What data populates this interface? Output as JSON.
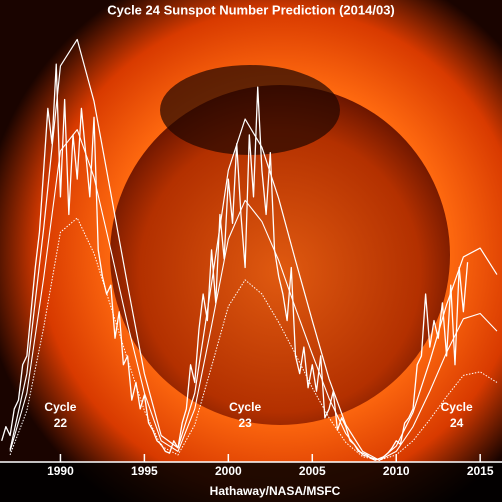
{
  "chart_data": {
    "type": "line",
    "title": "Cycle 24 Sunspot Number Prediction (2014/03)",
    "xlabel": "Hathaway/NASA/MSFC",
    "xlim": [
      1986.4,
      2016.3
    ],
    "xticks": [
      1990,
      1995,
      2000,
      2005,
      2010,
      2015
    ],
    "ylim": [
      0,
      250
    ],
    "annotations": [
      {
        "lines": [
          "Cycle",
          "22"
        ],
        "x": 1990
      },
      {
        "lines": [
          "Cycle",
          "23"
        ],
        "x": 2001
      },
      {
        "lines": [
          "Cycle",
          "24"
        ],
        "x": 2013.6
      }
    ],
    "series": [
      {
        "color": "#ffffff",
        "width": 1.3,
        "style": "solid",
        "x": [
          1986.5,
          1986.75,
          1987,
          1987.25,
          1987.5,
          1987.75,
          1988,
          1988.25,
          1988.5,
          1988.75,
          1989,
          1989.25,
          1989.5,
          1989.75,
          1990,
          1990.25,
          1990.5,
          1990.75,
          1991,
          1991.25,
          1991.5,
          1991.75,
          1992,
          1992.25,
          1992.5,
          1992.75,
          1993,
          1993.25,
          1993.5,
          1993.75,
          1994,
          1994.25,
          1994.5,
          1994.75,
          1995,
          1995.25,
          1995.5,
          1995.75,
          1996,
          1996.25,
          1996.5,
          1996.75,
          1997,
          1997.25,
          1997.5,
          1997.75,
          1998,
          1998.25,
          1998.5,
          1998.75,
          1999,
          1999.25,
          1999.5,
          1999.75,
          2000,
          2000.25,
          2000.5,
          2000.75,
          2001,
          2001.25,
          2001.5,
          2001.75,
          2002,
          2002.25,
          2002.5,
          2002.75,
          2003,
          2003.25,
          2003.5,
          2003.75,
          2004,
          2004.25,
          2004.5,
          2004.75,
          2005,
          2005.25,
          2005.5,
          2005.75,
          2006,
          2006.25,
          2006.5,
          2006.75,
          2007,
          2007.25,
          2007.5,
          2007.75,
          2008,
          2008.25,
          2008.5,
          2008.75,
          2009,
          2009.25,
          2009.5,
          2009.75,
          2010,
          2010.25,
          2010.5,
          2010.75,
          2011,
          2011.25,
          2011.5,
          2011.75,
          2012,
          2012.25,
          2012.5,
          2012.75,
          2013,
          2013.25,
          2013.5,
          2013.75,
          2014,
          2014.25
        ],
        "values": [
          12,
          20,
          15,
          30,
          35,
          55,
          60,
          85,
          110,
          130,
          165,
          200,
          180,
          225,
          150,
          205,
          140,
          185,
          160,
          200,
          175,
          150,
          195,
          120,
          105,
          95,
          100,
          70,
          85,
          55,
          60,
          35,
          45,
          30,
          38,
          22,
          18,
          12,
          10,
          6,
          5,
          12,
          8,
          22,
          30,
          55,
          45,
          75,
          95,
          80,
          120,
          90,
          140,
          115,
          160,
          135,
          180,
          140,
          110,
          185,
          150,
          212,
          165,
          140,
          175,
          120,
          105,
          95,
          80,
          110,
          60,
          50,
          65,
          42,
          55,
          40,
          60,
          25,
          30,
          40,
          18,
          25,
          20,
          12,
          10,
          6,
          5,
          4,
          2,
          1,
          2,
          3,
          5,
          8,
          12,
          10,
          22,
          25,
          30,
          55,
          60,
          95,
          65,
          80,
          70,
          90,
          60,
          100,
          55,
          110,
          85,
          113
        ]
      },
      {
        "color": "#ffffff",
        "width": 1.2,
        "style": "solid",
        "x": [
          1987,
          1988,
          1989,
          1990,
          1991,
          1992,
          1993,
          1994,
          1995,
          1996,
          1997,
          1998,
          1999,
          2000,
          2001,
          2002,
          2003,
          2004,
          2005,
          2006,
          2007,
          2008,
          2009,
          2010,
          2011,
          2012,
          2013,
          2014,
          2015,
          2016
        ],
        "values": [
          7,
          50,
          132,
          224,
          239,
          204,
          152,
          100,
          50,
          15,
          8,
          39,
          101,
          165,
          194,
          178,
          149,
          114,
          80,
          47,
          21,
          6,
          1,
          9,
          28,
          57,
          89,
          116,
          121,
          106
        ]
      },
      {
        "color": "#ffffff",
        "width": 1.1,
        "style": "solid",
        "x": [
          1987,
          1988,
          1989,
          1990,
          1991,
          1992,
          1993,
          1994,
          1995,
          1996,
          1997,
          1998,
          1999,
          2000,
          2001,
          2002,
          2003,
          2004,
          2005,
          2006,
          2007,
          2008,
          2009,
          2010,
          2011,
          2012,
          2013,
          2014,
          2015,
          2016
        ],
        "values": [
          6,
          39,
          104,
          176,
          188,
          161,
          120,
          78,
          39,
          12,
          6,
          30,
          77,
          126,
          148,
          136,
          114,
          87,
          61,
          36,
          16,
          4,
          1,
          6,
          20,
          40,
          62,
          81,
          84,
          74
        ]
      },
      {
        "color": "#ffffff",
        "width": 1,
        "style": "dotted",
        "x": [
          1987,
          1988,
          1989,
          1990,
          1991,
          1992,
          1993,
          1994,
          1995,
          1996,
          1997,
          1998,
          1999,
          2000,
          2001,
          2002,
          2003,
          2004,
          2005,
          2006,
          2007,
          2008,
          2009,
          2010,
          2011,
          2012,
          2013,
          2014,
          2015,
          2016
        ],
        "values": [
          4,
          29,
          76,
          130,
          138,
          118,
          88,
          58,
          29,
          9,
          4,
          21,
          54,
          88,
          103,
          95,
          79,
          61,
          42,
          25,
          11,
          3,
          1,
          4,
          12,
          24,
          37,
          49,
          51,
          45
        ]
      }
    ]
  }
}
